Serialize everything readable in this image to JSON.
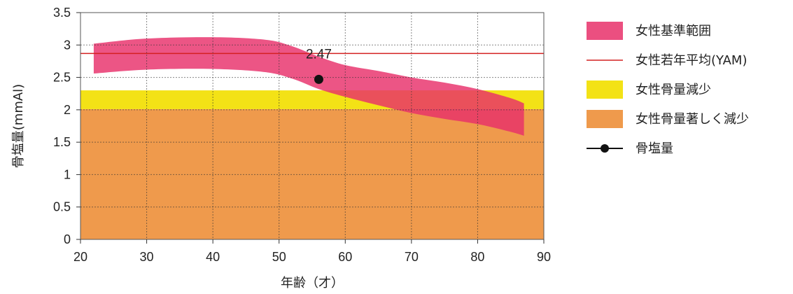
{
  "chart_data": {
    "type": "area",
    "xlabel": "年齢（才）",
    "ylabel": "骨塩量(mmAl)",
    "xlim": [
      20,
      90
    ],
    "ylim": [
      0,
      3.5
    ],
    "x_ticks": [
      20,
      30,
      40,
      50,
      60,
      70,
      80,
      90
    ],
    "y_ticks": [
      "0",
      "0.5",
      "1",
      "1.5",
      "2",
      "2.5",
      "3",
      "3.5"
    ],
    "grid": true,
    "legend_position": "right",
    "series": [
      {
        "name": "女性基準範囲",
        "kind": "band",
        "color": "#e8306a",
        "x": [
          22,
          30,
          40,
          48,
          52,
          56,
          60,
          65,
          70,
          75,
          80,
          85,
          87
        ],
        "upper": [
          3.02,
          3.1,
          3.12,
          3.08,
          2.98,
          2.82,
          2.69,
          2.6,
          2.5,
          2.42,
          2.32,
          2.18,
          2.1
        ],
        "lower": [
          2.56,
          2.62,
          2.63,
          2.58,
          2.48,
          2.32,
          2.2,
          2.07,
          1.95,
          1.86,
          1.78,
          1.66,
          1.6
        ]
      },
      {
        "name": "女性若年平均(YAM)",
        "kind": "line",
        "color": "#d42020",
        "value": 2.87
      },
      {
        "name": "女性骨量減少",
        "kind": "band",
        "color": "#f3e216",
        "lower": 2.01,
        "upper": 2.3
      },
      {
        "name": "女性骨量著しく減少",
        "kind": "band",
        "color": "#ef9a4c",
        "lower": 0,
        "upper": 2.01
      },
      {
        "name": "骨塩量",
        "kind": "point",
        "color": "#111111",
        "x": 56,
        "y": 2.47,
        "label": "2.47"
      }
    ]
  }
}
